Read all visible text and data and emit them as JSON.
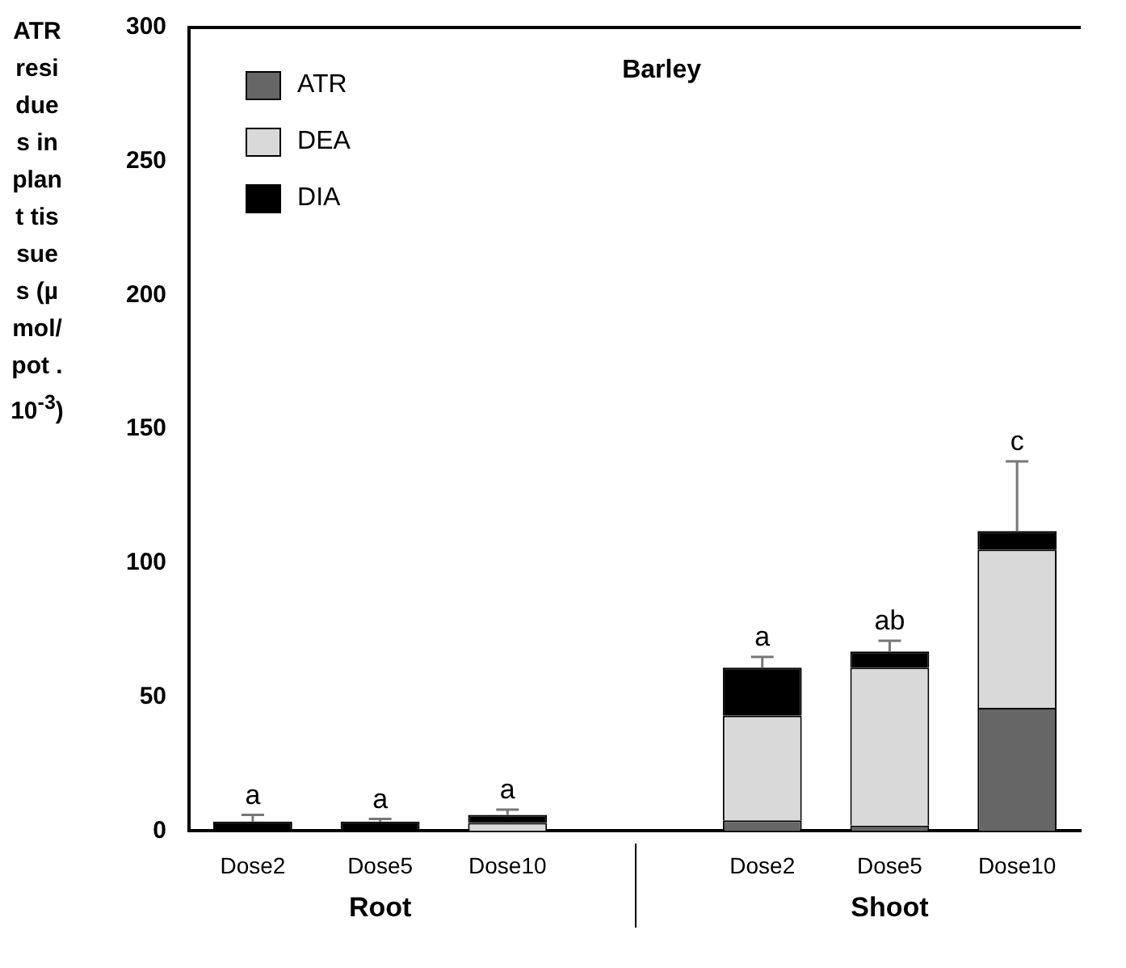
{
  "chart_data": {
    "type": "bar",
    "title": "Barley",
    "ylabel": "ATR residues in plant tissues (µmol/pot . 10$^{-3}$)",
    "categories": [
      "Dose2",
      "Dose5",
      "Dose10",
      null,
      "Dose2",
      "Dose5",
      "Dose10"
    ],
    "stacked": true,
    "ylim": [
      0,
      300
    ],
    "yticks": [
      0,
      50,
      100,
      150,
      200,
      250,
      300
    ],
    "grid": false,
    "legend": "top left",
    "annotations": [
      "Root",
      "Shoot"
    ],
    "series": [
      {
        "name": "ATR",
        "color": "#666666",
        "values": [
          0,
          0,
          0,
          null,
          4,
          2,
          46
        ]
      },
      {
        "name": "DEA",
        "color": "#d9d9d9",
        "values": [
          0,
          0,
          3,
          null,
          39,
          59,
          59
        ]
      },
      {
        "name": "DIA",
        "color": "#000000",
        "values": [
          3.5,
          3.5,
          3,
          null,
          18,
          6,
          7
        ],
        "errors": [
          [
            3.5,
            6
          ],
          [
            3.5,
            4.5
          ],
          [
            6,
            8
          ],
          null,
          [
            61,
            65
          ],
          [
            67,
            71
          ],
          [
            112,
            138
          ]
        ],
        "value_labels": [
          "a",
          "a",
          "a",
          null,
          "a",
          "ab",
          "c"
        ]
      }
    ]
  }
}
